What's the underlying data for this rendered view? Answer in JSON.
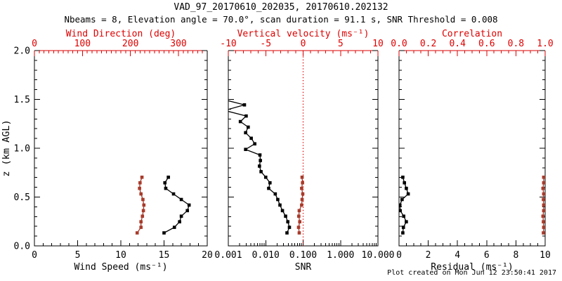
{
  "header": {
    "title": "VAD_97_20170610_202035, 20170610.202132",
    "subtitle": "Nbeams = 8, Elevation angle = 70.0°, scan duration = 91.1 s, SNR Threshold = 0.008"
  },
  "footer": {
    "created": "Plot created on Mon Jun 12 23:50:41 2017"
  },
  "style": {
    "axis_red": "#dd0000",
    "curve_red": "#a83b2b",
    "black": "#000000",
    "background": "#ffffff"
  },
  "chart_data": [
    {
      "type": "line",
      "panel": "wind-speed-direction",
      "y_axis": {
        "label": "z (km AGL)",
        "range": [
          0,
          2
        ],
        "ticks": [
          0,
          0.5,
          1,
          1.5,
          2
        ],
        "tick_labels": [
          "0.0",
          "0.5",
          "1.0",
          "1.5",
          "2.0"
        ],
        "minor_step": 0.1,
        "show_labels": true
      },
      "x_bottom": {
        "label": "Wind Speed (ms⁻¹)",
        "range": [
          0,
          20
        ],
        "ticks": [
          0,
          5,
          10,
          15,
          20
        ],
        "tick_labels": [
          "0",
          "5",
          "10",
          "15",
          "20"
        ],
        "minor_step": 1
      },
      "x_top": {
        "label": "Wind Direction (deg)",
        "range": [
          0,
          360
        ],
        "ticks": [
          0,
          100,
          200,
          300
        ],
        "tick_labels": [
          "0",
          "100",
          "200",
          "300"
        ],
        "minor_step": 10
      },
      "series": [
        {
          "name": "wind-speed",
          "axis": "bottom",
          "color": "black",
          "marker": "square",
          "z": [
            0.133,
            0.19,
            0.247,
            0.304,
            0.361,
            0.418,
            0.475,
            0.532,
            0.589,
            0.646,
            0.703
          ],
          "values": [
            15.0,
            16.2,
            16.8,
            17.0,
            17.7,
            17.9,
            17.0,
            16.1,
            15.2,
            15.1,
            15.5
          ]
        },
        {
          "name": "wind-direction",
          "axis": "top",
          "color": "red",
          "marker": "square",
          "z": [
            0.133,
            0.19,
            0.247,
            0.304,
            0.361,
            0.418,
            0.475,
            0.532,
            0.589,
            0.646,
            0.703
          ],
          "values": [
            214,
            222,
            222,
            225,
            227,
            228,
            226,
            222,
            219,
            220,
            224
          ]
        }
      ]
    },
    {
      "type": "line",
      "panel": "snr-vertical-velocity",
      "y_axis": {
        "label": "",
        "range": [
          0,
          2
        ],
        "ticks": [
          0,
          0.5,
          1,
          1.5,
          2
        ],
        "tick_labels": [
          "0.0",
          "0.5",
          "1.0",
          "1.5",
          "2.0"
        ],
        "minor_step": 0.1,
        "show_labels": false
      },
      "x_bottom": {
        "label": "SNR",
        "scale": "log",
        "range": [
          0.001,
          10
        ],
        "ticks": [
          0.001,
          0.01,
          0.1,
          1,
          10
        ],
        "tick_labels": [
          "0.001",
          "0.010",
          "0.100",
          "1.000",
          "10.000"
        ]
      },
      "x_top": {
        "label": "Vertical velocity (ms⁻¹)",
        "range": [
          -10,
          10
        ],
        "ticks": [
          -10,
          -5,
          0,
          5,
          10
        ],
        "tick_labels": [
          "-10",
          "-5",
          "0",
          "5",
          "10"
        ],
        "minor_step": 1
      },
      "zero_line": {
        "axis": "top",
        "value": 0,
        "style": "dotted",
        "color": "red"
      },
      "series": [
        {
          "name": "snr",
          "axis": "bottom",
          "color": "black",
          "marker": "square",
          "z": [
            0.133,
            0.19,
            0.247,
            0.304,
            0.361,
            0.418,
            0.475,
            0.532,
            0.589,
            0.646,
            0.703,
            0.76,
            0.817,
            0.874,
            0.931,
            0.988,
            1.045,
            1.102,
            1.159,
            1.216,
            1.273,
            1.33,
            1.387,
            1.444,
            1.501
          ],
          "values": [
            0.037,
            0.043,
            0.039,
            0.034,
            0.028,
            0.024,
            0.021,
            0.018,
            0.012,
            0.013,
            0.01,
            0.0075,
            0.0068,
            0.0072,
            0.007,
            0.0029,
            0.0051,
            0.0041,
            0.0029,
            0.0034,
            0.0021,
            0.003,
            0.0008,
            0.0027,
            0.0007
          ]
        },
        {
          "name": "vertical-velocity",
          "axis": "top",
          "color": "red",
          "marker": "square",
          "z": [
            0.133,
            0.19,
            0.247,
            0.304,
            0.361,
            0.418,
            0.475,
            0.532,
            0.589,
            0.646,
            0.703
          ],
          "values": [
            -0.52,
            -0.61,
            -0.45,
            -0.58,
            -0.52,
            -0.2,
            -0.14,
            -0.05,
            -0.2,
            -0.08,
            -0.14
          ]
        }
      ]
    },
    {
      "type": "line",
      "panel": "residual-correlation",
      "y_axis": {
        "label": "",
        "range": [
          0,
          2
        ],
        "ticks": [
          0,
          0.5,
          1,
          1.5,
          2
        ],
        "tick_labels": [
          "0.0",
          "0.5",
          "1.0",
          "1.5",
          "2.0"
        ],
        "minor_step": 0.1,
        "show_labels": false
      },
      "x_bottom": {
        "label": "Residual (ms⁻¹)",
        "range": [
          0,
          10
        ],
        "ticks": [
          0,
          2,
          4,
          6,
          8,
          10
        ],
        "tick_labels": [
          "0",
          "2",
          "4",
          "6",
          "8",
          "10"
        ],
        "minor_step": 0.5
      },
      "x_top": {
        "label": "Correlation",
        "range": [
          0,
          1
        ],
        "ticks": [
          0,
          0.2,
          0.4,
          0.6,
          0.8,
          1
        ],
        "tick_labels": [
          "0.0",
          "0.2",
          "0.4",
          "0.6",
          "0.8",
          "1.0"
        ],
        "minor_step": 0.05
      },
      "series": [
        {
          "name": "residual",
          "axis": "bottom",
          "color": "black",
          "marker": "square",
          "z": [
            0.133,
            0.19,
            0.247,
            0.304,
            0.361,
            0.418,
            0.475,
            0.532,
            0.589,
            0.646,
            0.703
          ],
          "values": [
            0.26,
            0.3,
            0.5,
            0.32,
            0.08,
            0.06,
            0.21,
            0.63,
            0.5,
            0.37,
            0.26
          ]
        },
        {
          "name": "correlation",
          "axis": "top",
          "color": "red",
          "marker": "square",
          "z": [
            0.133,
            0.19,
            0.247,
            0.304,
            0.361,
            0.418,
            0.475,
            0.532,
            0.589,
            0.646,
            0.703
          ],
          "values": [
            0.988,
            0.99,
            0.988,
            0.985,
            0.99,
            0.99,
            0.988,
            0.99,
            0.985,
            0.99,
            0.99
          ]
        }
      ]
    }
  ]
}
